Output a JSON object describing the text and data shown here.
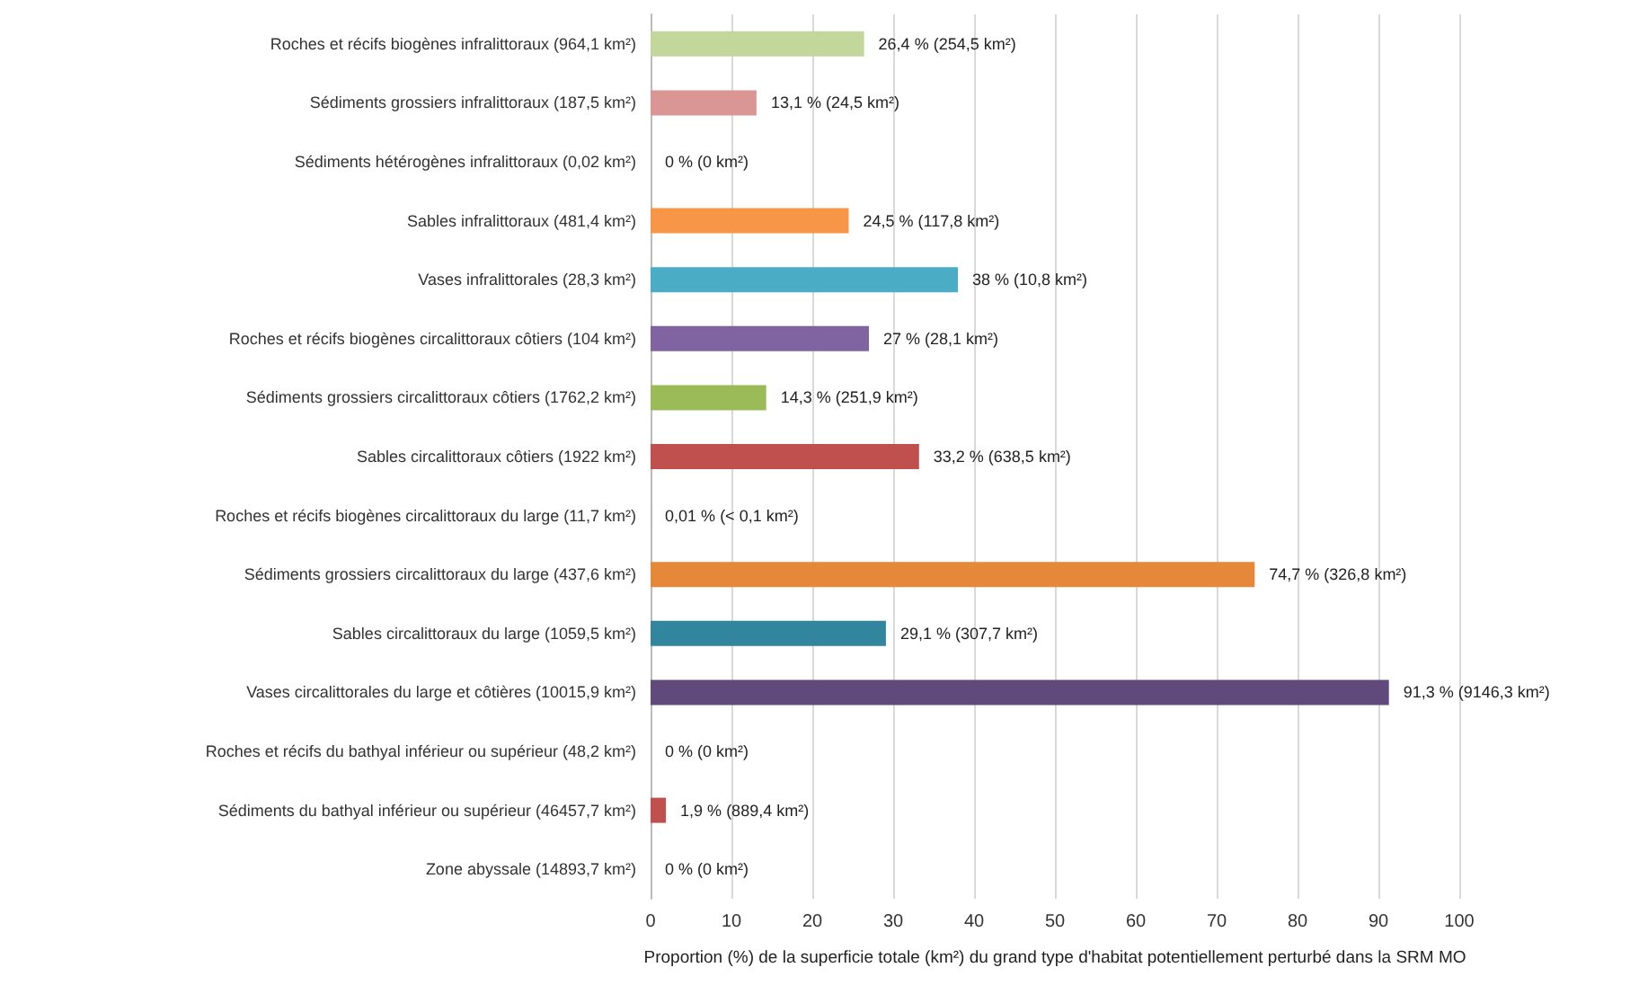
{
  "chart_data": {
    "type": "bar",
    "orientation": "horizontal",
    "xlabel": "Proportion (%) de la superficie totale (km²) du grand type d'habitat potentiellement perturbé dans la SRM MO",
    "categories": [
      "Roches et récifs biogènes infralittoraux (964,1 km²)",
      "Sédiments grossiers infralittoraux (187,5 km²)",
      "Sédiments hétérogènes infralittoraux (0,02 km²)",
      "Sables infralittoraux (481,4 km²)",
      "Vases infralittorales (28,3 km²)",
      "Roches et récifs biogènes circalittoraux côtiers (104 km²)",
      "Sédiments grossiers circalittoraux côtiers (1762,2 km²)",
      "Sables circalittoraux côtiers (1922 km²)",
      "Roches et récifs biogènes circalittoraux du large (11,7 km²)",
      "Sédiments grossiers circalittoraux du large (437,6 km²)",
      "Sables circalittoraux du large (1059,5 km²)",
      "Vases circalittorales du large et côtières (10015,9 km²)",
      "Roches et récifs du bathyal inférieur ou supérieur (48,2 km²)",
      "Sédiments du bathyal inférieur ou supérieur (46457,7 km²)",
      "Zone abyssale (14893,7 km²)"
    ],
    "values": [
      26.4,
      13.1,
      0,
      24.5,
      38,
      27,
      14.3,
      33.2,
      0.01,
      74.7,
      29.1,
      91.3,
      0,
      1.9,
      0
    ],
    "colors": [
      "#c3d69b",
      "#d99694",
      "#d99694",
      "#f79646",
      "#4bacc6",
      "#8064a2",
      "#9bbb59",
      "#c0504d",
      "#c0504d",
      "#e6883a",
      "#31859c",
      "#604a7b",
      "#c0504d",
      "#c0504d",
      "#c0504d"
    ],
    "value_labels": [
      "26,4 % (254,5 km²)",
      "13,1 % (24,5 km²)",
      "0 % (0 km²)",
      "24,5 % (117,8 km²)",
      "38 % (10,8 km²)",
      "27 % (28,1 km²)",
      "14,3 % (251,9 km²)",
      "33,2 % (638,5 km²)",
      "0,01 % (< 0,1 km²)",
      "74,7 % (326,8 km²)",
      "29,1 % (307,7 km²)",
      "91,3 % (9146,3 km²)",
      "0 % (0 km²)",
      "1,9 % (889,4 km²)",
      "0 % (0 km²)"
    ],
    "xlim": [
      0,
      100
    ],
    "xticks": [
      0,
      10,
      20,
      30,
      40,
      50,
      60,
      70,
      80,
      90,
      100
    ],
    "grid": "x"
  }
}
